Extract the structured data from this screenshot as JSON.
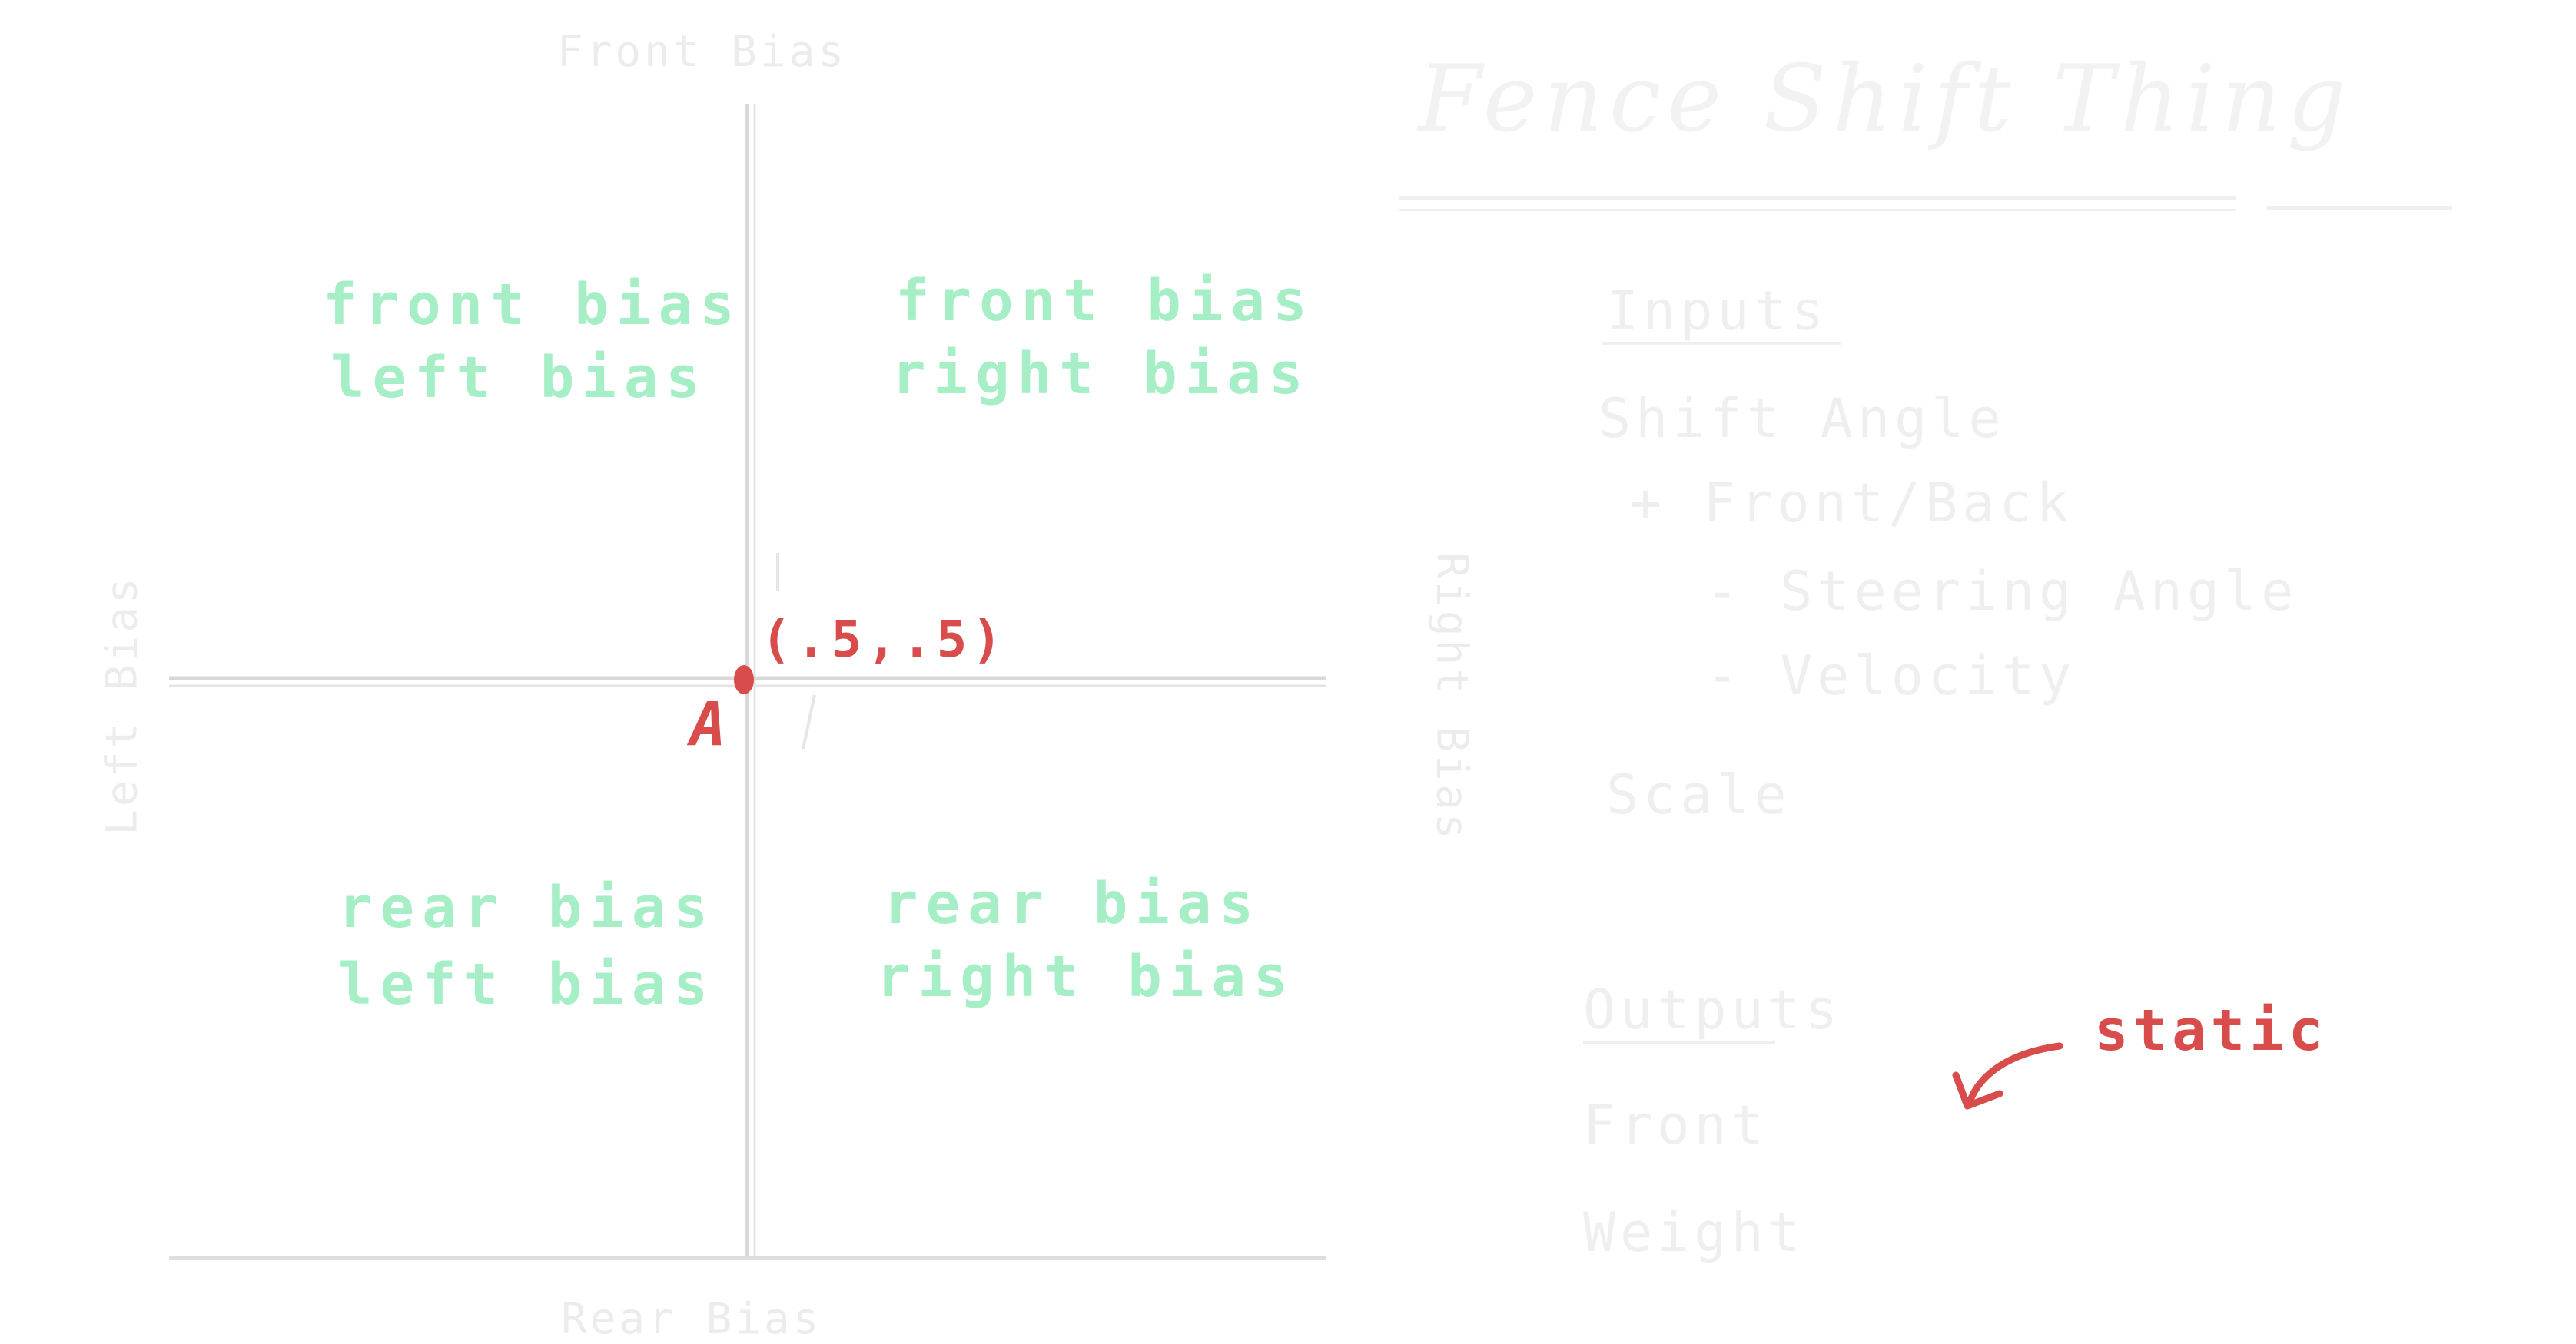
{
  "top_axis_label": "Front Bias",
  "bottom_axis_label": "Rear Bias",
  "left_axis_label": "Left Bias",
  "right_axis_label": "Right Bias",
  "quadrants": {
    "top_left": [
      "front bias",
      "left bias"
    ],
    "top_right": [
      "front bias",
      "right bias"
    ],
    "bottom_left": [
      "rear bias",
      "left bias"
    ],
    "bottom_right": [
      "rear bias",
      "right bias"
    ]
  },
  "center_point": {
    "label": "A",
    "coords": "(.5,.5)"
  },
  "title": "Fence Shift Thing",
  "notes": [
    "Inputs",
    "Shift Angle",
    "+ Front/Back",
    "- Steering Angle",
    "- Velocity",
    "Scale",
    "Outputs",
    "Front",
    "Weight"
  ],
  "annotation": "static",
  "colors": {
    "grid_line": "#d8d8d8",
    "quadrant_text": "#a6efc6",
    "accent_red": "#d94c4c",
    "faint_text": "#efefef"
  }
}
